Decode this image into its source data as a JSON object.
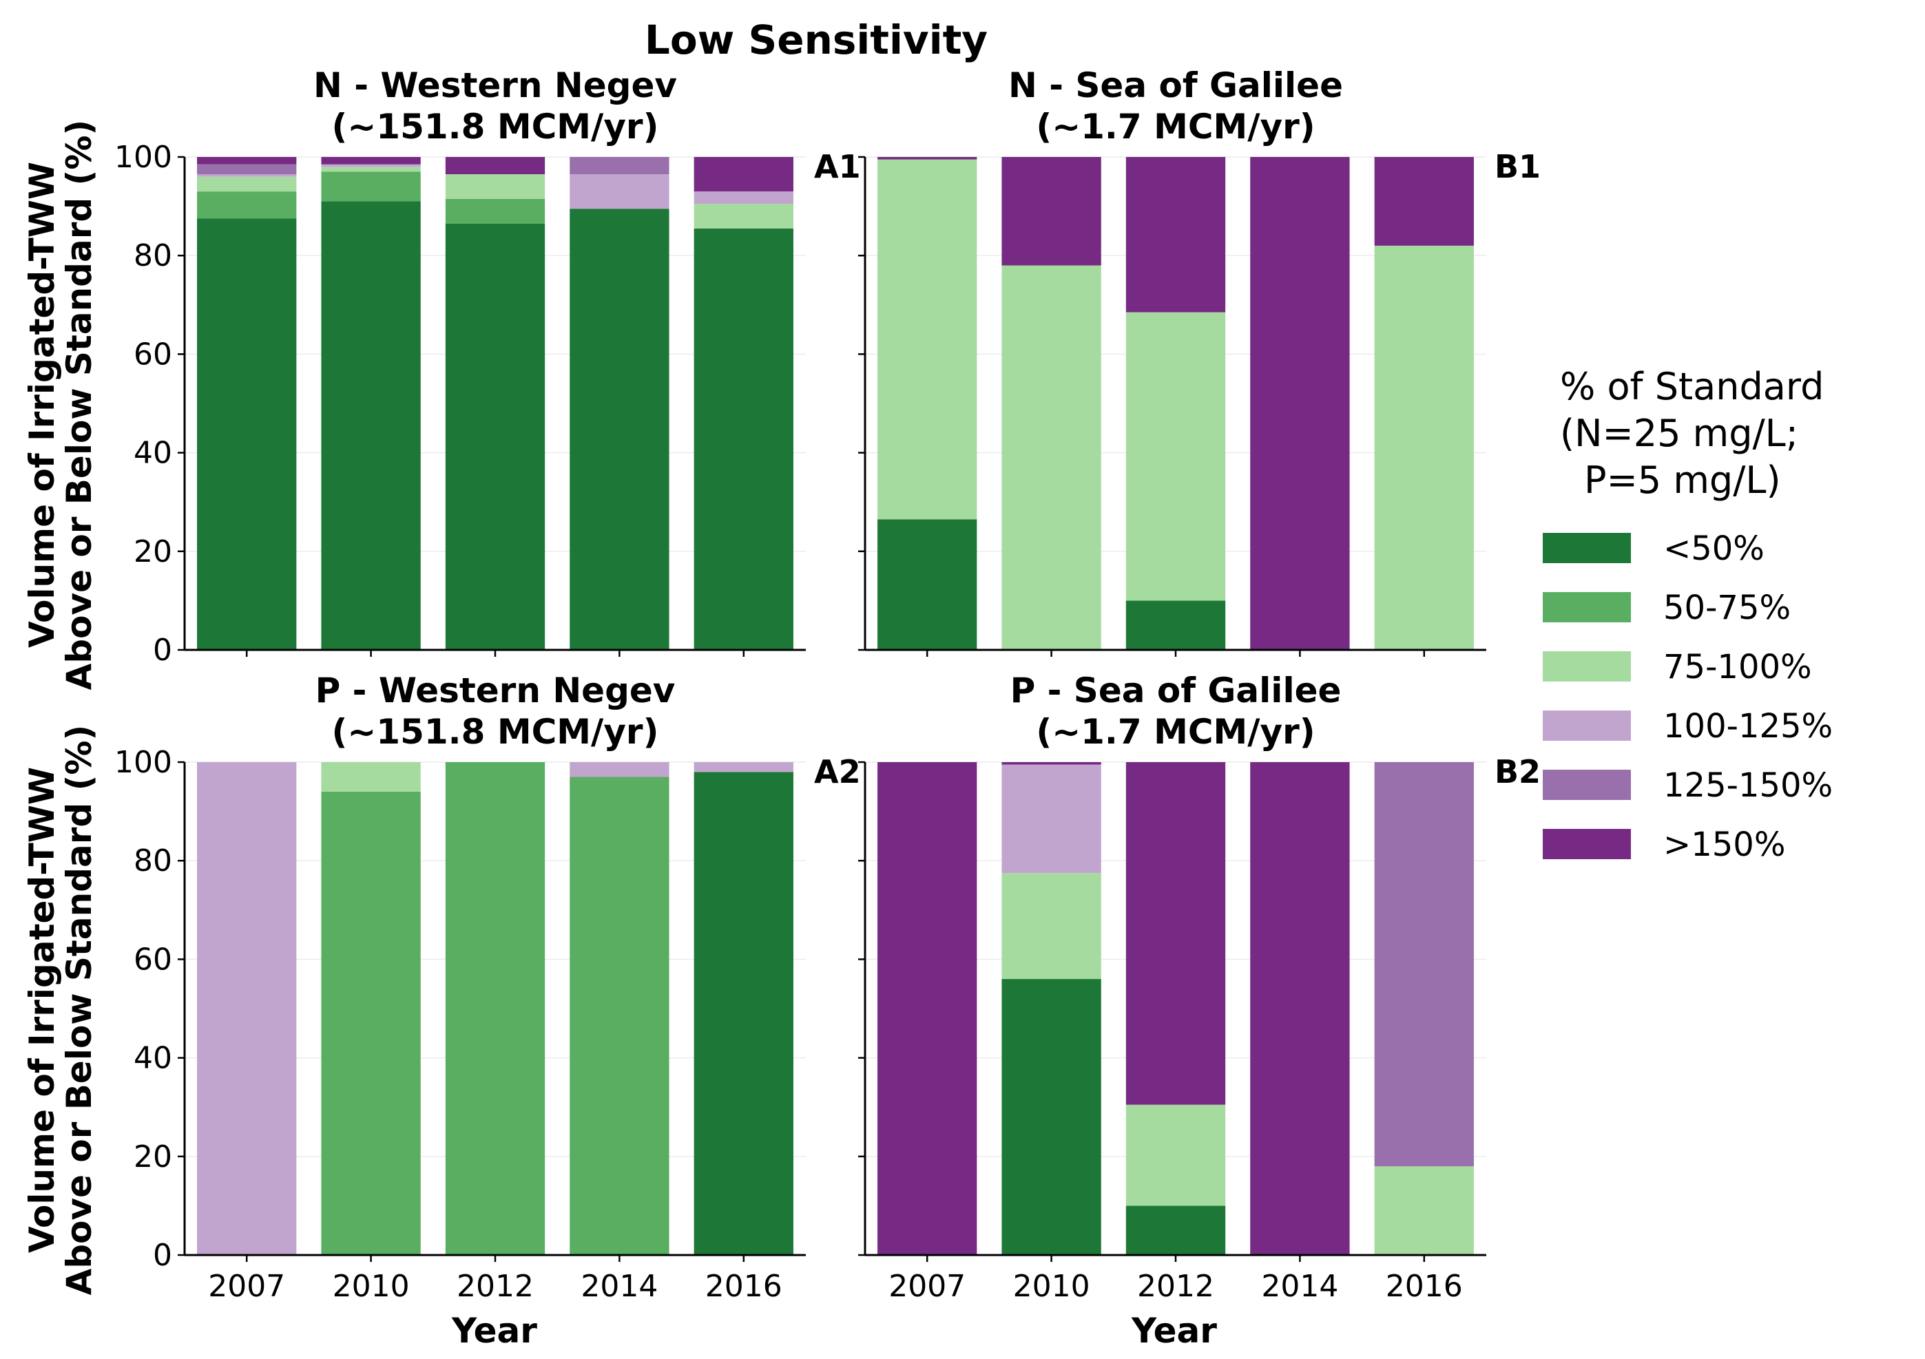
{
  "title": "Low Sensitivity",
  "legend": {
    "title_lines": [
      "% of Standard",
      "(N=25 mg/L;",
      "P=5 mg/L)"
    ],
    "categories": [
      {
        "label": "<50%",
        "color": "#1d7837"
      },
      {
        "label": "50-75%",
        "color": "#5aae61"
      },
      {
        "label": "75-100%",
        "color": "#a6dba0"
      },
      {
        "label": "100-125%",
        "color": "#c2a5cf"
      },
      {
        "label": "125-150%",
        "color": "#9970ab"
      },
      {
        "label": ">150%",
        "color": "#762a83"
      }
    ]
  },
  "ylabel_lines": [
    "Volume of Irrigated-TWW",
    "Above or Below Standard (%)"
  ],
  "xlabel": "Year",
  "chart_data": [
    {
      "type": "bar",
      "stacked": true,
      "panel_id": "A1",
      "title_lines": [
        "N - Western Negev",
        "(~151.8 MCM/yr)"
      ],
      "categories": [
        "2007",
        "2010",
        "2012",
        "2014",
        "2016"
      ],
      "ylim": [
        0,
        100
      ],
      "yticks": [
        0,
        20,
        40,
        60,
        80,
        100
      ],
      "series": [
        {
          "name": "<50%",
          "values": [
            87.5,
            91,
            86.5,
            89.5,
            85.5
          ]
        },
        {
          "name": "50-75%",
          "values": [
            5.5,
            6,
            5,
            0,
            0
          ]
        },
        {
          "name": "75-100%",
          "values": [
            3,
            1,
            5,
            0,
            5
          ]
        },
        {
          "name": "100-125%",
          "values": [
            0.5,
            0.5,
            0,
            7,
            2.5
          ]
        },
        {
          "name": "125-150%",
          "values": [
            2,
            0,
            0,
            3.5,
            0
          ]
        },
        {
          "name": ">150%",
          "values": [
            1.5,
            1.5,
            3.5,
            0,
            7
          ]
        }
      ]
    },
    {
      "type": "bar",
      "stacked": true,
      "panel_id": "B1",
      "title_lines": [
        "N - Sea of Galilee",
        "(~1.7 MCM/yr)"
      ],
      "categories": [
        "2007",
        "2010",
        "2012",
        "2014",
        "2016"
      ],
      "ylim": [
        0,
        100
      ],
      "yticks": [
        0,
        20,
        40,
        60,
        80,
        100
      ],
      "series": [
        {
          "name": "<50%",
          "values": [
            26.5,
            0,
            10,
            0,
            0
          ]
        },
        {
          "name": "50-75%",
          "values": [
            0,
            0,
            0,
            0,
            0
          ]
        },
        {
          "name": "75-100%",
          "values": [
            73,
            78,
            58.5,
            0,
            82
          ]
        },
        {
          "name": "100-125%",
          "values": [
            0,
            0,
            0,
            0,
            0
          ]
        },
        {
          "name": "125-150%",
          "values": [
            0,
            0,
            0,
            0,
            0
          ]
        },
        {
          "name": ">150%",
          "values": [
            0.5,
            22,
            31.5,
            100,
            18
          ]
        }
      ]
    },
    {
      "type": "bar",
      "stacked": true,
      "panel_id": "A2",
      "title_lines": [
        "P - Western Negev",
        "(~151.8 MCM/yr)"
      ],
      "categories": [
        "2007",
        "2010",
        "2012",
        "2014",
        "2016"
      ],
      "ylim": [
        0,
        100
      ],
      "yticks": [
        0,
        20,
        40,
        60,
        80,
        100
      ],
      "series": [
        {
          "name": "<50%",
          "values": [
            0,
            0,
            0,
            0,
            98
          ]
        },
        {
          "name": "50-75%",
          "values": [
            0,
            94,
            100,
            97,
            0
          ]
        },
        {
          "name": "75-100%",
          "values": [
            0,
            6,
            0,
            0,
            0
          ]
        },
        {
          "name": "100-125%",
          "values": [
            100,
            0,
            0,
            3,
            2
          ]
        },
        {
          "name": "125-150%",
          "values": [
            0,
            0,
            0,
            0,
            0
          ]
        },
        {
          "name": ">150%",
          "values": [
            0,
            0,
            0,
            0,
            0
          ]
        }
      ]
    },
    {
      "type": "bar",
      "stacked": true,
      "panel_id": "B2",
      "title_lines": [
        "P - Sea of Galilee",
        "(~1.7 MCM/yr)"
      ],
      "categories": [
        "2007",
        "2010",
        "2012",
        "2014",
        "2016"
      ],
      "ylim": [
        0,
        100
      ],
      "yticks": [
        0,
        20,
        40,
        60,
        80,
        100
      ],
      "series": [
        {
          "name": "<50%",
          "values": [
            0,
            56,
            10,
            0,
            0
          ]
        },
        {
          "name": "50-75%",
          "values": [
            0,
            0,
            0,
            0,
            0
          ]
        },
        {
          "name": "75-100%",
          "values": [
            0,
            21.5,
            20.5,
            0,
            18
          ]
        },
        {
          "name": "100-125%",
          "values": [
            0,
            22,
            0,
            0,
            0
          ]
        },
        {
          "name": "125-150%",
          "values": [
            0,
            0,
            0,
            0,
            82
          ]
        },
        {
          "name": ">150%",
          "values": [
            100,
            0.5,
            69.5,
            100,
            0
          ]
        }
      ]
    }
  ]
}
